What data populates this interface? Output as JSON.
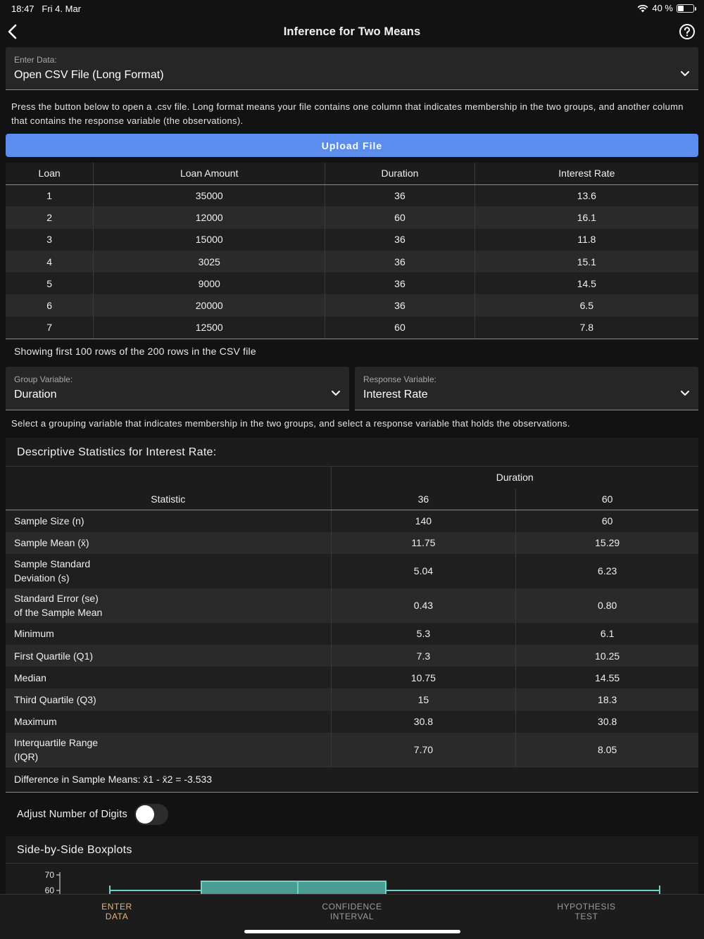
{
  "status": {
    "time": "18:47",
    "date": "Fri 4. Mar",
    "battery_text": "40 %",
    "battery_level": 0.4
  },
  "nav": {
    "title": "Inference for Two Means",
    "back_icon": "chevron-left-icon",
    "help_icon": "help-circle-icon"
  },
  "enter_data": {
    "label": "Enter Data:",
    "value": "Open CSV File (Long Format)"
  },
  "help_text": "Press the button below to open a .csv file. Long format means your file contains one column that indicates membership in the two groups, and another column that contains the response variable (the observations).",
  "upload_button": "Upload File",
  "csv_table": {
    "headers": [
      "Loan",
      "Loan Amount",
      "Duration",
      "Interest Rate"
    ],
    "rows": [
      [
        "1",
        "35000",
        "36",
        "13.6"
      ],
      [
        "2",
        "12000",
        "60",
        "16.1"
      ],
      [
        "3",
        "15000",
        "36",
        "11.8"
      ],
      [
        "4",
        "3025",
        "36",
        "15.1"
      ],
      [
        "5",
        "9000",
        "36",
        "14.5"
      ],
      [
        "6",
        "20000",
        "36",
        "6.5"
      ],
      [
        "7",
        "12500",
        "60",
        "7.8"
      ]
    ]
  },
  "showing_text": "Showing first 100 rows of the 200 rows in the CSV file",
  "group_variable": {
    "label": "Group Variable:",
    "value": "Duration"
  },
  "response_variable": {
    "label": "Response Variable:",
    "value": "Interest Rate"
  },
  "select_help": "Select a grouping variable that indicates membership in the two groups, and select a response variable that holds the observations.",
  "stats": {
    "title": "Descriptive Statistics for Interest Rate:",
    "group_header": "Duration",
    "stat_header": "Statistic",
    "groups": [
      "36",
      "60"
    ],
    "rows": [
      {
        "name": "Sample Size (n)",
        "v1": "140",
        "v2": "60"
      },
      {
        "name": "Sample Mean (x̄)",
        "v1": "11.75",
        "v2": "15.29"
      },
      {
        "name": "Sample Standard\nDeviation (s)",
        "v1": "5.04",
        "v2": "6.23"
      },
      {
        "name": "Standard Error (se)\nof the Sample Mean",
        "v1": "0.43",
        "v2": "0.80"
      },
      {
        "name": "Minimum",
        "v1": "5.3",
        "v2": "6.1"
      },
      {
        "name": "First Quartile (Q1)",
        "v1": "7.3",
        "v2": "10.25"
      },
      {
        "name": "Median",
        "v1": "10.75",
        "v2": "14.55"
      },
      {
        "name": "Third Quartile (Q3)",
        "v1": "15",
        "v2": "18.3"
      },
      {
        "name": "Maximum",
        "v1": "30.8",
        "v2": "30.8"
      },
      {
        "name": "Interquartile Range\n(IQR)",
        "v1": "7.70",
        "v2": "8.05"
      }
    ],
    "difference": "Difference in Sample Means: x̄1 - x̄2 = -3.533"
  },
  "adjust_digits": {
    "label": "Adjust Number of Digits",
    "on": false
  },
  "boxplots": {
    "title": "Side-by-Side Boxplots",
    "y_ticks": [
      "70",
      "60"
    ],
    "box_color": "#4a9d93"
  },
  "tabs": [
    {
      "label": "ENTER\nDATA",
      "active": true
    },
    {
      "label": "CONFIDENCE\nINTERVAL",
      "active": false
    },
    {
      "label": "HYPOTHESIS\nTEST",
      "active": false
    }
  ]
}
